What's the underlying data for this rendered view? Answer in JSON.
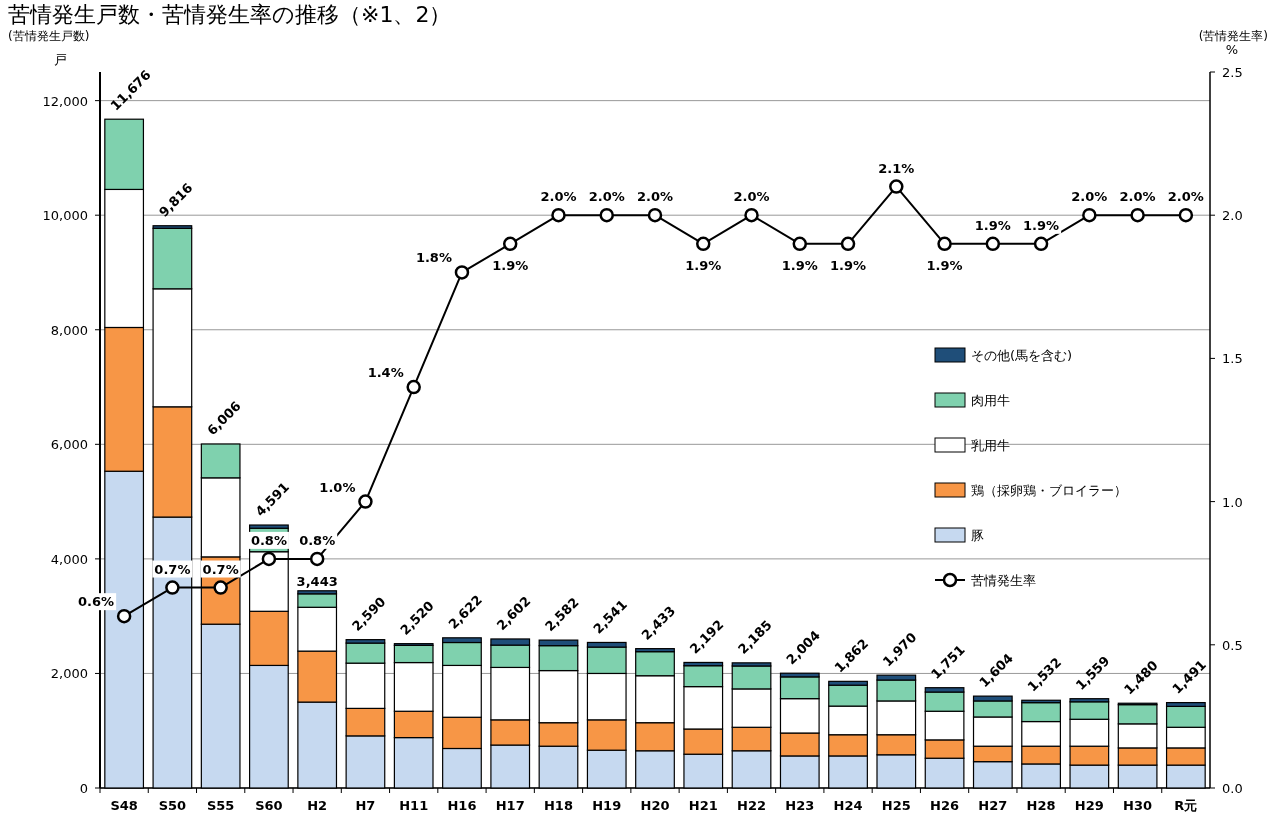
{
  "chart_data": {
    "type": "bar",
    "title": "苦情発生戸数・苦情発生率の推移（※1、2）",
    "ylabel": "戸",
    "y2label": "%",
    "annotations": [
      "(苦情発生戸数)",
      "(苦情発生率)"
    ],
    "categories": [
      "S48",
      "S50",
      "S55",
      "S60",
      "H2",
      "H7",
      "H11",
      "H16",
      "H17",
      "H18",
      "H19",
      "H20",
      "H21",
      "H22",
      "H23",
      "H24",
      "H25",
      "H26",
      "H27",
      "H28",
      "H29",
      "H30",
      "R元"
    ],
    "stacked": true,
    "series": [
      {
        "name": "豚",
        "color": "#c6d9f0",
        "values": [
          5530,
          4730,
          2860,
          2140,
          1500,
          910,
          880,
          690,
          750,
          730,
          660,
          650,
          590,
          650,
          560,
          560,
          580,
          520,
          460,
          420,
          400,
          400,
          400
        ]
      },
      {
        "name": "鶏（採卵鶏・ブロイラー）",
        "color": "#f79646",
        "values": [
          2510,
          1925,
          1175,
          945,
          890,
          480,
          460,
          545,
          440,
          410,
          530,
          490,
          440,
          410,
          400,
          370,
          350,
          320,
          270,
          310,
          330,
          300,
          300
        ]
      },
      {
        "name": "乳用牛",
        "color": "#ffffff",
        "values": [
          2410,
          2060,
          1380,
          1040,
          765,
          790,
          850,
          905,
          915,
          910,
          810,
          820,
          740,
          670,
          600,
          500,
          590,
          500,
          510,
          430,
          470,
          420,
          360
        ]
      },
      {
        "name": "肉用牛",
        "color": "#7fd1ae",
        "values": [
          1226,
          1056,
          591,
          410,
          235,
          350,
          300,
          400,
          390,
          435,
          460,
          420,
          365,
          400,
          380,
          365,
          365,
          335,
          280,
          330,
          305,
          335,
          365
        ]
      },
      {
        "name": "その他(馬を含む)",
        "color": "#1f4e79",
        "values": [
          0,
          45,
          0,
          56,
          53,
          60,
          30,
          82,
          107,
          97,
          81,
          53,
          57,
          55,
          64,
          67,
          85,
          76,
          84,
          42,
          54,
          25,
          66
        ]
      },
      {
        "name": "苦情発生率",
        "type": "line",
        "axis": "y2",
        "color": "#000000",
        "marker": "circle",
        "values": [
          0.6,
          0.7,
          0.7,
          0.8,
          0.8,
          1.0,
          1.4,
          1.8,
          1.9,
          2.0,
          2.0,
          2.0,
          1.9,
          2.0,
          1.9,
          1.9,
          2.1,
          1.9,
          1.9,
          1.9,
          2.0,
          2.0,
          2.0
        ],
        "value_labels": [
          "0.6%",
          "0.7%",
          "0.7%",
          "0.8%",
          "0.8%",
          "1.0%",
          "1.4%",
          "1.8%",
          "1.9%",
          "2.0%",
          "2.0%",
          "2.0%",
          "1.9%",
          "2.0%",
          "1.9%",
          "1.9%",
          "2.1%",
          "1.9%",
          "1.9%",
          "1.9%",
          "2.0%",
          "2.0%",
          "2.0%"
        ]
      }
    ],
    "totals": [
      "11,676",
      "9,816",
      "6,006",
      "4,591",
      "3,443",
      "2,590",
      "2,520",
      "2,622",
      "2,602",
      "2,582",
      "2,541",
      "2,433",
      "2,192",
      "2,185",
      "2,004",
      "1,862",
      "1,970",
      "1,751",
      "1,604",
      "1,532",
      "1,559",
      "1,480",
      "1,491"
    ],
    "ylim": [
      0,
      12500
    ],
    "yticks": [
      {
        "value": 0,
        "label": "0"
      },
      {
        "value": 2000,
        "label": "2,000"
      },
      {
        "value": 4000,
        "label": "4,000"
      },
      {
        "value": 6000,
        "label": "6,000"
      },
      {
        "value": 8000,
        "label": "8,000"
      },
      {
        "value": 10000,
        "label": "10,000"
      },
      {
        "value": 12000,
        "label": "12,000"
      }
    ],
    "y2lim": [
      0,
      2.5
    ],
    "y2ticks": [
      {
        "value": 0,
        "label": "0.0"
      },
      {
        "value": 0.5,
        "label": "0.5"
      },
      {
        "value": 1,
        "label": "1.0"
      },
      {
        "value": 1.5,
        "label": "1.5"
      },
      {
        "value": 2,
        "label": "2.0"
      },
      {
        "value": 2.5,
        "label": "2.5"
      }
    ],
    "grid": "y",
    "legend": "right"
  }
}
